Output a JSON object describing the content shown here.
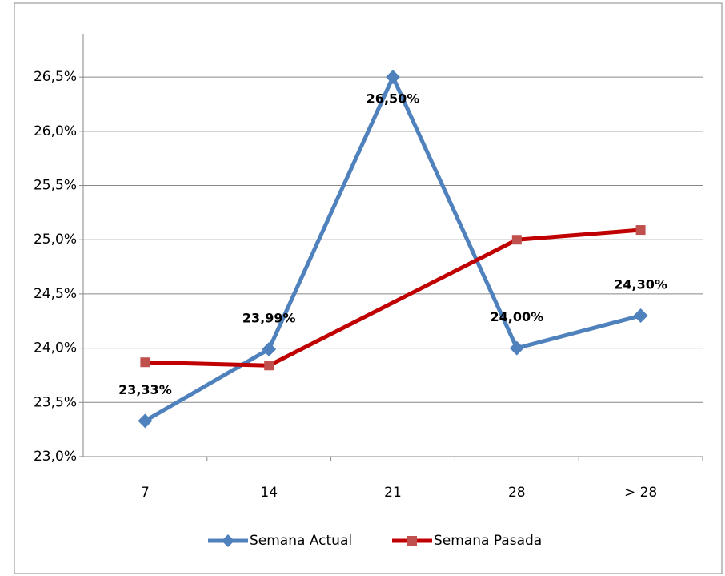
{
  "chart_data": {
    "type": "line",
    "categories": [
      "7",
      "14",
      "21",
      "28",
      "> 28"
    ],
    "series": [
      {
        "name": "Semana Actual",
        "color": "#4f81bd",
        "marker": "diamond",
        "values": [
          23.33,
          23.99,
          26.5,
          24.0,
          24.3
        ],
        "value_labels": [
          "23,33%",
          "23,99%",
          "26,50%",
          "24,00%",
          "24,30%"
        ]
      },
      {
        "name": "Semana Pasada",
        "color": "#c00000",
        "marker_color": "#c0504d",
        "marker": "square",
        "values": [
          23.87,
          23.84,
          null,
          25.0,
          25.09
        ]
      }
    ],
    "ylim": [
      23,
      26.9
    ],
    "yticks": [
      {
        "value": 23,
        "label": "23,0%"
      },
      {
        "value": 23.5,
        "label": "23,5%"
      },
      {
        "value": 24,
        "label": "24,0%"
      },
      {
        "value": 24.5,
        "label": "24,5%"
      },
      {
        "value": 25,
        "label": "25,0%"
      },
      {
        "value": 25.5,
        "label": "25,5%"
      },
      {
        "value": 26,
        "label": "26,0%"
      },
      {
        "value": 26.5,
        "label": "26,5%"
      }
    ],
    "grid": true,
    "legend": "bottom"
  }
}
